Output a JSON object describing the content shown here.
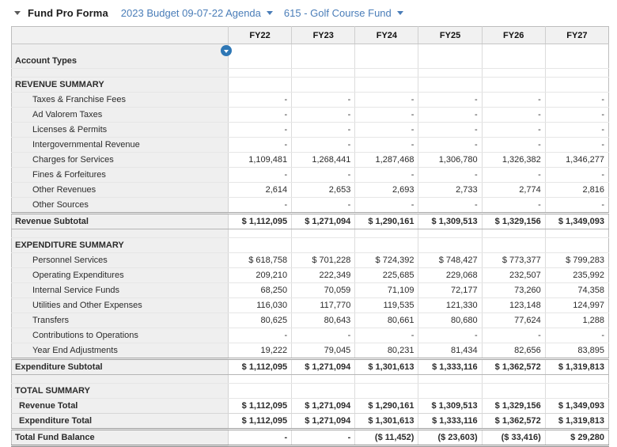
{
  "colors": {
    "link_blue": "#4a7db8",
    "filter_icon_blue": "#2e77b5",
    "label_column_bg": "#efefef",
    "header_bg": "#f1f1f1"
  },
  "toolbar": {
    "title": "Fund Pro Forma",
    "budget_dropdown": "2023 Budget 09-07-22 Agenda",
    "fund_dropdown": "615 - Golf Course Fund"
  },
  "table": {
    "corner_header": "",
    "columns": [
      "FY22",
      "FY23",
      "FY24",
      "FY25",
      "FY26",
      "FY27"
    ],
    "filter_icon": "chevron-down",
    "rows": [
      {
        "type": "account",
        "label": "Account Types",
        "values": [
          "",
          "",
          "",
          "",
          "",
          ""
        ]
      },
      {
        "type": "blank",
        "label": "",
        "values": [
          "",
          "",
          "",
          "",
          "",
          ""
        ]
      },
      {
        "type": "section",
        "label": "REVENUE SUMMARY",
        "values": [
          "",
          "",
          "",
          "",
          "",
          ""
        ]
      },
      {
        "type": "detail",
        "label": "Taxes & Franchise Fees",
        "values": [
          "-",
          "-",
          "-",
          "-",
          "-",
          "-"
        ]
      },
      {
        "type": "detail",
        "label": "Ad Valorem Taxes",
        "values": [
          "-",
          "-",
          "-",
          "-",
          "-",
          "-"
        ]
      },
      {
        "type": "detail",
        "label": "Licenses & Permits",
        "values": [
          "-",
          "-",
          "-",
          "-",
          "-",
          "-"
        ]
      },
      {
        "type": "detail",
        "label": "Intergovernmental Revenue",
        "values": [
          "-",
          "-",
          "-",
          "-",
          "-",
          "-"
        ]
      },
      {
        "type": "detail",
        "label": "Charges for Services",
        "values": [
          "1,109,481",
          "1,268,441",
          "1,287,468",
          "1,306,780",
          "1,326,382",
          "1,346,277"
        ]
      },
      {
        "type": "detail",
        "label": "Fines & Forfeitures",
        "values": [
          "-",
          "-",
          "-",
          "-",
          "-",
          "-"
        ]
      },
      {
        "type": "detail",
        "label": "Other Revenues",
        "values": [
          "2,614",
          "2,653",
          "2,693",
          "2,733",
          "2,774",
          "2,816"
        ]
      },
      {
        "type": "detail",
        "label": "Other Sources",
        "values": [
          "-",
          "-",
          "-",
          "-",
          "-",
          "-"
        ]
      },
      {
        "type": "subtotal",
        "label": "Revenue Subtotal",
        "values": [
          "$ 1,112,095",
          "$ 1,271,094",
          "$ 1,290,161",
          "$ 1,309,513",
          "$ 1,329,156",
          "$ 1,349,093"
        ]
      },
      {
        "type": "blank",
        "label": "",
        "values": [
          "",
          "",
          "",
          "",
          "",
          ""
        ]
      },
      {
        "type": "section",
        "label": "EXPENDITURE SUMMARY",
        "values": [
          "",
          "",
          "",
          "",
          "",
          ""
        ]
      },
      {
        "type": "detail",
        "label": "Personnel Services",
        "values": [
          "$ 618,758",
          "$ 701,228",
          "$ 724,392",
          "$ 748,427",
          "$ 773,377",
          "$ 799,283"
        ]
      },
      {
        "type": "detail",
        "label": "Operating Expenditures",
        "values": [
          "209,210",
          "222,349",
          "225,685",
          "229,068",
          "232,507",
          "235,992"
        ]
      },
      {
        "type": "detail",
        "label": "Internal Service Funds",
        "values": [
          "68,250",
          "70,059",
          "71,109",
          "72,177",
          "73,260",
          "74,358"
        ]
      },
      {
        "type": "detail",
        "label": "Utilities and Other Expenses",
        "values": [
          "116,030",
          "117,770",
          "119,535",
          "121,330",
          "123,148",
          "124,997"
        ]
      },
      {
        "type": "detail",
        "label": "Transfers",
        "values": [
          "80,625",
          "80,643",
          "80,661",
          "80,680",
          "77,624",
          "1,288"
        ]
      },
      {
        "type": "detail",
        "label": "Contributions to Operations",
        "values": [
          "-",
          "-",
          "-",
          "-",
          "-",
          "-"
        ]
      },
      {
        "type": "detail",
        "label": "Year End Adjustments",
        "values": [
          "19,222",
          "79,045",
          "80,231",
          "81,434",
          "82,656",
          "83,895"
        ]
      },
      {
        "type": "subtotal",
        "label": "Expenditure Subtotal",
        "values": [
          "$ 1,112,095",
          "$ 1,271,094",
          "$ 1,301,613",
          "$ 1,333,116",
          "$ 1,362,572",
          "$ 1,319,813"
        ]
      },
      {
        "type": "blank",
        "label": "",
        "values": [
          "",
          "",
          "",
          "",
          "",
          ""
        ]
      },
      {
        "type": "section",
        "label": "TOTAL SUMMARY",
        "values": [
          "",
          "",
          "",
          "",
          "",
          ""
        ]
      },
      {
        "type": "total",
        "label": "Revenue Total",
        "values": [
          "$ 1,112,095",
          "$ 1,271,094",
          "$ 1,290,161",
          "$ 1,309,513",
          "$ 1,329,156",
          "$ 1,349,093"
        ]
      },
      {
        "type": "total",
        "label": "Expenditure Total",
        "values": [
          "$ 1,112,095",
          "$ 1,271,094",
          "$ 1,301,613",
          "$ 1,333,116",
          "$ 1,362,572",
          "$ 1,319,813"
        ]
      },
      {
        "type": "grand",
        "label": "Total Fund Balance",
        "values": [
          "-",
          "-",
          "($ 11,452)",
          "($ 23,603)",
          "($ 33,416)",
          "$ 29,280"
        ]
      }
    ]
  }
}
